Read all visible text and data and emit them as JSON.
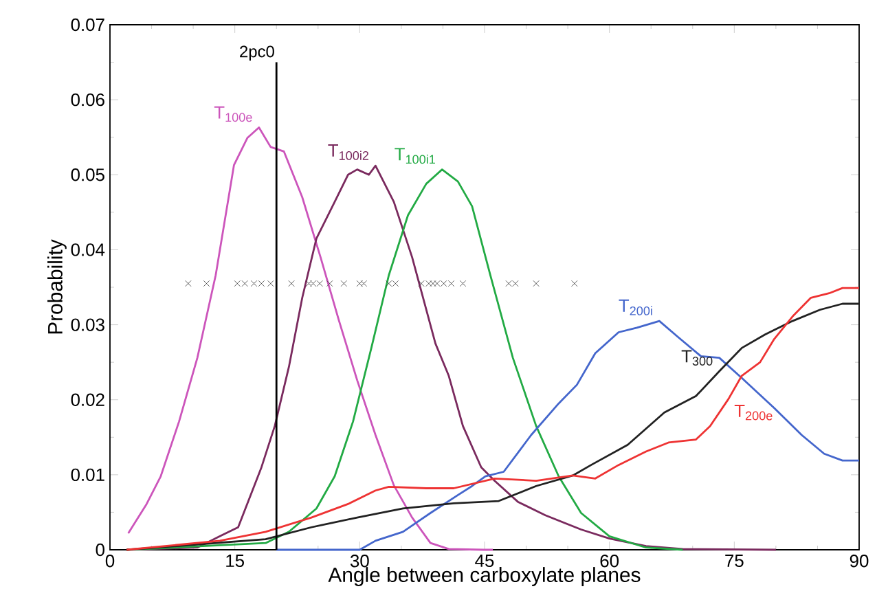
{
  "chart_data": {
    "type": "line",
    "xlabel": "Angle between carboxylate planes",
    "ylabel": "Probability",
    "xlim": [
      0,
      90
    ],
    "ylim": [
      0,
      0.07
    ],
    "xticks": [
      0,
      15,
      30,
      45,
      60,
      75,
      90
    ],
    "yticks": [
      0,
      0.01,
      0.02,
      0.03,
      0.04,
      0.05,
      0.06,
      0.07
    ],
    "grid": false,
    "series": [
      {
        "name": "T$_{100e}$",
        "color": "#cc55bb",
        "x": [
          2.2,
          4.4,
          6.1,
          8.3,
          10.5,
          12.7,
          14.9,
          16.5,
          17.9,
          19.3,
          20.9,
          23.1,
          25.3,
          27.5,
          29.7,
          31.9,
          34.1,
          36.3,
          38.5,
          40.7,
          44.9,
          46
        ],
        "values": [
          0.0022,
          0.0061,
          0.0098,
          0.0171,
          0.0256,
          0.0366,
          0.0513,
          0.0549,
          0.0563,
          0.0537,
          0.0531,
          0.047,
          0.039,
          0.0306,
          0.0226,
          0.0153,
          0.0086,
          0.0043,
          0.0009,
          0.0001,
          0,
          0
        ]
      },
      {
        "name": "T$_{100i2}$",
        "color": "#7a2a5e",
        "x": [
          2,
          10.5,
          13.2,
          15.4,
          18.2,
          19.8,
          21.5,
          23.1,
          24.8,
          27,
          28.6,
          29.7,
          31.1,
          31.9,
          34.1,
          36.3,
          39.1,
          40.7,
          42.4,
          44.6,
          46.2,
          49,
          52.3,
          56.6,
          60,
          64.4,
          68.8,
          80
        ],
        "values": [
          0,
          0.0003,
          0.0018,
          0.003,
          0.011,
          0.0165,
          0.0244,
          0.0336,
          0.0415,
          0.0464,
          0.05,
          0.0507,
          0.05,
          0.0512,
          0.0464,
          0.039,
          0.0275,
          0.0232,
          0.0165,
          0.011,
          0.0092,
          0.0064,
          0.0046,
          0.0027,
          0.0015,
          0.0005,
          0.0001,
          0
        ]
      },
      {
        "name": "T$_{100i1}$",
        "color": "#22aa44",
        "x": [
          2,
          18.7,
          21.5,
          24.8,
          27,
          29.2,
          31.4,
          33.5,
          35.8,
          38,
          39.9,
          41.8,
          43.5,
          45.7,
          48.4,
          51.2,
          53.9,
          56.6,
          60,
          64.4,
          68.8
        ],
        "values": [
          0,
          0.0009,
          0.0024,
          0.0055,
          0.0098,
          0.0171,
          0.0269,
          0.0366,
          0.0446,
          0.0488,
          0.0507,
          0.0491,
          0.0458,
          0.0366,
          0.0256,
          0.0165,
          0.0098,
          0.0049,
          0.0018,
          0.0003,
          0
        ]
      },
      {
        "name": "T$_{200i}$",
        "color": "#4466cc",
        "x": [
          20,
          30,
          31.9,
          35.2,
          38.5,
          41.8,
          43.5,
          45.1,
          47.3,
          50.6,
          53.9,
          56.1,
          58.3,
          61.1,
          63.3,
          66,
          68.2,
          71,
          73.2,
          75.9,
          79.8,
          83.1,
          85.8,
          88,
          90
        ],
        "values": [
          0,
          0,
          0.0012,
          0.0024,
          0.0049,
          0.0073,
          0.0085,
          0.0098,
          0.0104,
          0.0153,
          0.0195,
          0.022,
          0.0262,
          0.029,
          0.0296,
          0.0305,
          0.0284,
          0.0258,
          0.0256,
          0.0229,
          0.0189,
          0.0153,
          0.0128,
          0.0119,
          0.0119
        ]
      },
      {
        "name": "T$_{300}$",
        "color": "#222222",
        "x": [
          2,
          18.7,
          24.2,
          29.7,
          35.2,
          41.3,
          46.7,
          51.2,
          55.6,
          57.8,
          62.2,
          66.6,
          70.4,
          73.2,
          75.9,
          78.7,
          82,
          85.3,
          88,
          90
        ],
        "values": [
          0,
          0.0014,
          0.003,
          0.0043,
          0.0055,
          0.0062,
          0.0065,
          0.0085,
          0.0099,
          0.0113,
          0.014,
          0.0183,
          0.0205,
          0.0238,
          0.0269,
          0.0287,
          0.0305,
          0.032,
          0.0328,
          0.0328
        ]
      },
      {
        "name": "T$_{200e}$",
        "color": "#ee3333",
        "x": [
          2,
          13.2,
          18.7,
          24.2,
          28.6,
          31.9,
          33.5,
          38,
          41.3,
          46.2,
          51.2,
          55.6,
          58.3,
          61.1,
          64.4,
          67.1,
          70.4,
          72.1,
          74.3,
          75.9,
          78.1,
          79.8,
          82,
          84.2,
          86.4,
          88,
          90
        ],
        "values": [
          0,
          0.0012,
          0.0024,
          0.0043,
          0.0061,
          0.0079,
          0.0084,
          0.0082,
          0.0082,
          0.0095,
          0.0092,
          0.0099,
          0.0095,
          0.0113,
          0.0131,
          0.0143,
          0.0147,
          0.0165,
          0.0201,
          0.0232,
          0.025,
          0.0281,
          0.0311,
          0.0336,
          0.0342,
          0.0349,
          0.0349
        ]
      },
      {
        "type": "line",
        "name": "2pc0",
        "color": "#000000",
        "x": [
          20,
          20
        ],
        "values": [
          0,
          0.065
        ]
      },
      {
        "type": "scatter",
        "marker": "cross",
        "color": "#333333",
        "x": [
          9.4,
          11.6,
          15.3,
          16.2,
          17.3,
          18.2,
          19.3,
          21.8,
          23.9,
          24.4,
          25.2,
          26.4,
          28.1,
          30.0,
          30.5,
          33.5,
          34.3,
          37.4,
          38.3,
          38.8,
          39.3,
          40.1,
          41.0,
          42.4,
          47.9,
          48.7,
          51.2,
          55.8
        ],
        "values": [
          0.0355,
          0.0355,
          0.0355,
          0.0355,
          0.0355,
          0.0355,
          0.0355,
          0.0355,
          0.0355,
          0.0355,
          0.0355,
          0.0355,
          0.0355,
          0.0355,
          0.0355,
          0.0355,
          0.0355,
          0.0355,
          0.0355,
          0.0355,
          0.0355,
          0.0355,
          0.0355,
          0.0355,
          0.0355,
          0.0355,
          0.0355,
          0.0355
        ]
      }
    ]
  }
}
